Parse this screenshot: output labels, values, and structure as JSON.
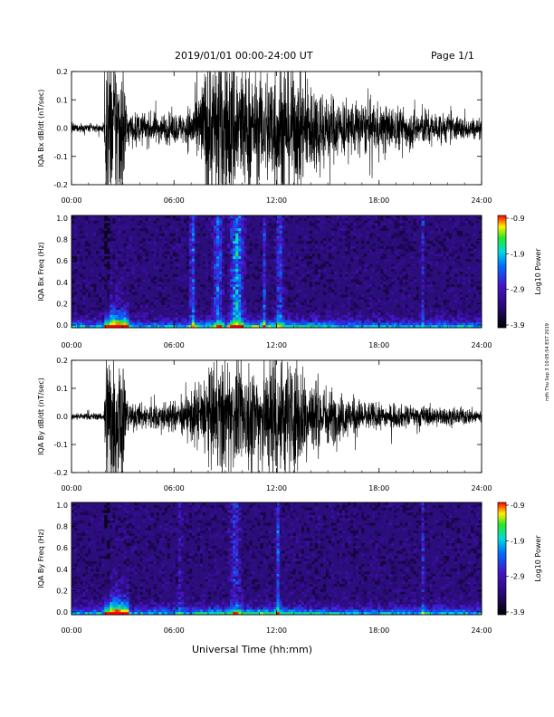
{
  "header": {
    "date_range": "2019/01/01  00:00-24:00 UT",
    "page": "Page 1/1"
  },
  "side_note": "mfh Thu Sep 3 10:05:54 EST 2019",
  "xlabel": "Universal Time (hh:mm)",
  "x_ticks": [
    "00:00",
    "06:00",
    "12:00",
    "18:00",
    "24:00"
  ],
  "colors": {
    "waveform": "#000000",
    "spectrogram_bg": "#2a0f7a"
  },
  "chart_data": [
    {
      "type": "line",
      "id": "bx_waveform",
      "ylabel": "IQA Bx dB/dt (nT/sec)",
      "ylim": [
        -0.2,
        0.2
      ],
      "y_ticks": [
        "0.2",
        "0.1",
        "0.0",
        "-0.1",
        "-0.2"
      ],
      "x": "Universal Time (hours)",
      "xlim": [
        0,
        24
      ],
      "amplitude_envelope": [
        {
          "t": 0,
          "amp": 0.015
        },
        {
          "t": 1.9,
          "amp": 0.015
        },
        {
          "t": 2.0,
          "amp": 0.25
        },
        {
          "t": 3.0,
          "amp": 0.25
        },
        {
          "t": 3.3,
          "amp": 0.05
        },
        {
          "t": 6.5,
          "amp": 0.05
        },
        {
          "t": 7.5,
          "amp": 0.12
        },
        {
          "t": 8.0,
          "amp": 0.25
        },
        {
          "t": 9.5,
          "amp": 0.25
        },
        {
          "t": 11.0,
          "amp": 0.16
        },
        {
          "t": 12.0,
          "amp": 0.25
        },
        {
          "t": 13.0,
          "amp": 0.2
        },
        {
          "t": 15.5,
          "amp": 0.1
        },
        {
          "t": 18.0,
          "amp": 0.08
        },
        {
          "t": 20.5,
          "amp": 0.06
        },
        {
          "t": 24.0,
          "amp": 0.03
        }
      ]
    },
    {
      "type": "heatmap",
      "id": "bx_spectrogram",
      "ylabel": "IQA Bx Freq (Hz)",
      "ylim": [
        0.0,
        1.0
      ],
      "y_ticks": [
        "1.0",
        "0.8",
        "0.6",
        "0.4",
        "0.2",
        "0.0"
      ],
      "xlim": [
        0,
        24
      ],
      "colorbar": {
        "label": "Log10 Power",
        "range": [
          -3.9,
          -0.9
        ],
        "ticks": [
          "-0.9",
          "-1.9",
          "-2.9",
          "-3.9"
        ]
      }
    },
    {
      "type": "line",
      "id": "by_waveform",
      "ylabel": "IQA By dB/dt (nT/sec)",
      "ylim": [
        -0.2,
        0.2
      ],
      "y_ticks": [
        "0.2",
        "0.1",
        "0.0",
        "-0.1",
        "-0.2"
      ],
      "x": "Universal Time (hours)",
      "xlim": [
        0,
        24
      ],
      "amplitude_envelope": [
        {
          "t": 0,
          "amp": 0.012
        },
        {
          "t": 1.9,
          "amp": 0.012
        },
        {
          "t": 2.0,
          "amp": 0.25
        },
        {
          "t": 3.0,
          "amp": 0.25
        },
        {
          "t": 3.3,
          "amp": 0.04
        },
        {
          "t": 6.5,
          "amp": 0.05
        },
        {
          "t": 7.5,
          "amp": 0.12
        },
        {
          "t": 8.5,
          "amp": 0.18
        },
        {
          "t": 10.0,
          "amp": 0.16
        },
        {
          "t": 11.5,
          "amp": 0.2
        },
        {
          "t": 12.0,
          "amp": 0.25
        },
        {
          "t": 13.0,
          "amp": 0.18
        },
        {
          "t": 15.5,
          "amp": 0.08
        },
        {
          "t": 18.0,
          "amp": 0.04
        },
        {
          "t": 20.5,
          "amp": 0.035
        },
        {
          "t": 24.0,
          "amp": 0.025
        }
      ]
    },
    {
      "type": "heatmap",
      "id": "by_spectrogram",
      "ylabel": "IQA By Freq (Hz)",
      "ylim": [
        0.0,
        1.0
      ],
      "y_ticks": [
        "1.0",
        "0.8",
        "0.6",
        "0.4",
        "0.2",
        "0.0"
      ],
      "xlim": [
        0,
        24
      ],
      "colorbar": {
        "label": "Log10 Power",
        "range": [
          -3.9,
          -0.9
        ],
        "ticks": [
          "-0.9",
          "-1.9",
          "-2.9",
          "-3.9"
        ]
      }
    }
  ]
}
